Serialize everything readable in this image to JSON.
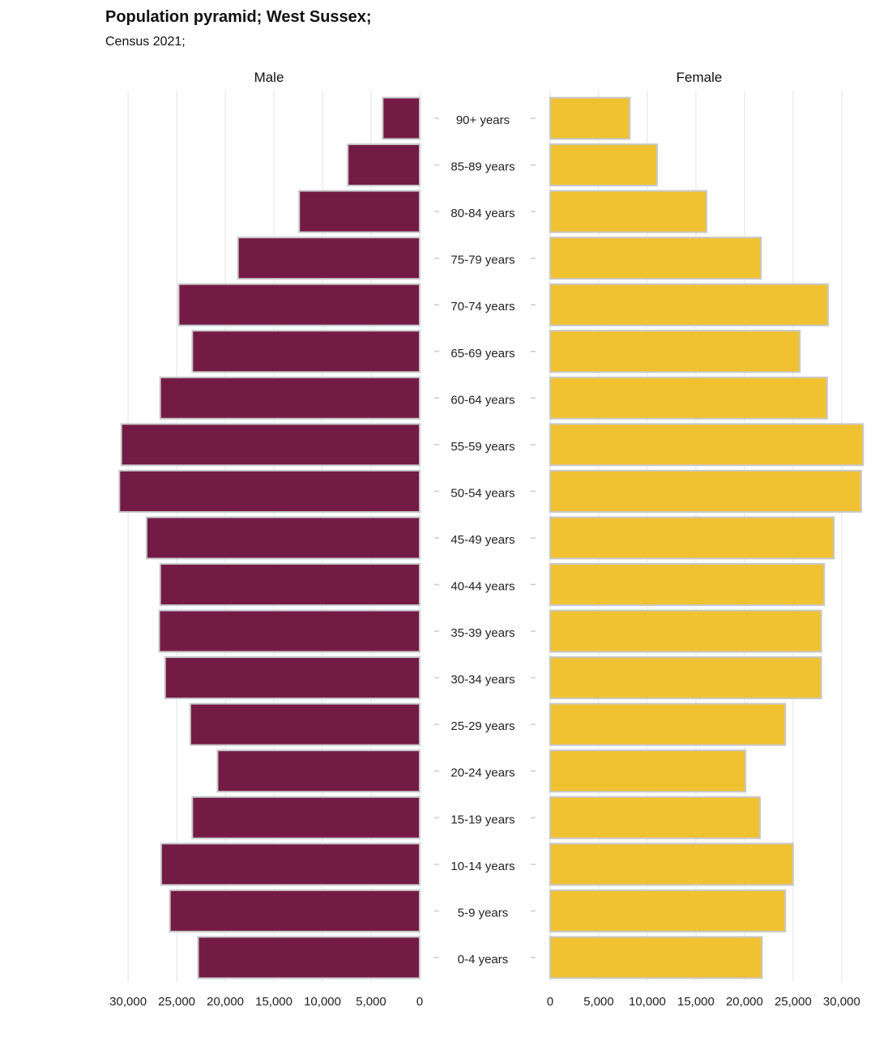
{
  "title": "Population pyramid; West Sussex;",
  "subtitle": "Census 2021;",
  "colors": {
    "male": "#731b45",
    "female": "#f0c232",
    "bar_border": "#c8c8c8",
    "grid": "#e3e3e3",
    "tick": "#cccccc"
  },
  "chart_data": {
    "type": "bar",
    "orientation": "horizontal",
    "title": "Population pyramid; West Sussex;",
    "subtitle": "Census 2021;",
    "categories": [
      "90+ years",
      "85-89 years",
      "80-84 years",
      "75-79 years",
      "70-74 years",
      "65-69 years",
      "60-64 years",
      "55-59 years",
      "50-54 years",
      "45-49 years",
      "40-44 years",
      "35-39 years",
      "30-34 years",
      "25-29 years",
      "20-24 years",
      "15-19 years",
      "10-14 years",
      "5-9 years",
      "0-4 years"
    ],
    "series": [
      {
        "name": "Male",
        "values": [
          3800,
          7400,
          12400,
          18700,
          24800,
          23400,
          26700,
          30700,
          30900,
          28100,
          26700,
          26800,
          26200,
          23600,
          20800,
          23400,
          26600,
          25700,
          22800
        ]
      },
      {
        "name": "Female",
        "values": [
          8200,
          11000,
          16100,
          21700,
          28600,
          25700,
          28500,
          32200,
          32000,
          29200,
          28200,
          27900,
          27900,
          24200,
          20100,
          21600,
          25000,
          24200,
          21800
        ]
      }
    ],
    "x_ticks": [
      0,
      5000,
      10000,
      15000,
      20000,
      25000,
      30000
    ],
    "x_tick_labels": [
      "0",
      "5,000",
      "10,000",
      "15,000",
      "20,000",
      "25,000",
      "30,000"
    ],
    "xlim": [
      0,
      31000
    ],
    "grid": true,
    "legend": "none"
  }
}
